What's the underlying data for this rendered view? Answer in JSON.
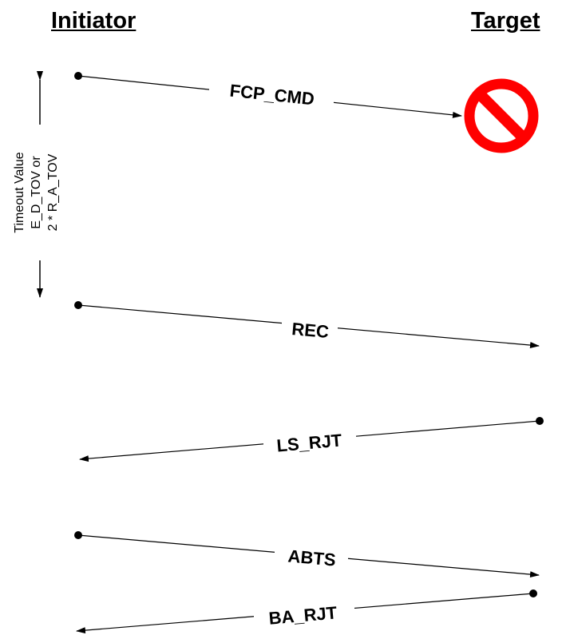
{
  "headers": {
    "initiator": "Initiator",
    "target": "Target"
  },
  "timeout": {
    "lines": [
      "Timeout Value",
      "E_D_TOV or",
      "2 * R_A_TOV"
    ]
  },
  "messages": [
    {
      "label": "FCP_CMD",
      "direction": "initiator-to-target",
      "blocked": true
    },
    {
      "label": "REC",
      "direction": "initiator-to-target"
    },
    {
      "label": "LS_RJT",
      "direction": "target-to-initiator"
    },
    {
      "label": "ABTS",
      "direction": "initiator-to-target"
    },
    {
      "label": "BA_RJT",
      "direction": "target-to-initiator"
    }
  ],
  "colors": {
    "line": "#000000",
    "blocked_sign": "#ff0000"
  },
  "icons": {
    "blocked": "prohibited-sign-icon"
  }
}
